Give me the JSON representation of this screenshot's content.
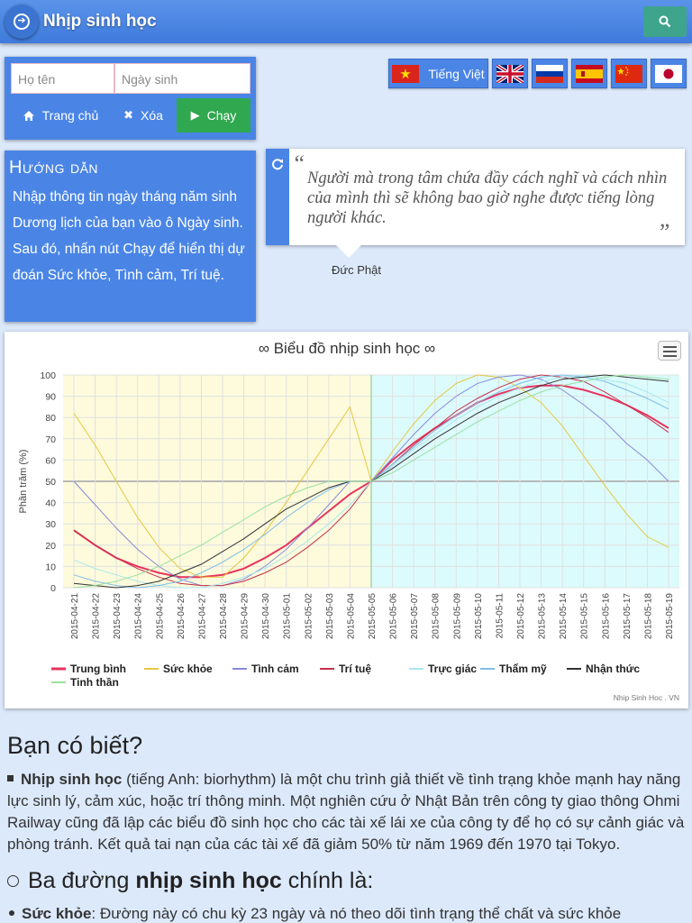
{
  "app": {
    "title": "Nhịp sinh học"
  },
  "form": {
    "name_placeholder": "Họ tên",
    "birth_placeholder": "Ngày sinh",
    "home_label": "Trang chủ",
    "clear_label": "Xóa",
    "run_label": "Chạy"
  },
  "languages": {
    "selected_label": "Tiếng Việt"
  },
  "guide": {
    "title": "Hướng dẫn",
    "text": "Nhập thông tin ngày tháng năm sinh Dương lịch của bạn vào ô Ngày sinh. Sau đó, nhấn nút Chạy để hiển thị dự đoán Sức khỏe, Tình cảm, Trí tuệ."
  },
  "quote": {
    "text": "Người mà trong tâm chứa đầy cách nghĩ và cách nhìn của mình thì sẽ không bao giờ nghe được tiếng lòng người khác.",
    "author": "Đức Phật"
  },
  "chart_data": {
    "type": "line",
    "title": "∞ Biểu đồ nhịp sinh học ∞",
    "ylabel": "Phần trăm (%)",
    "ylim": [
      0,
      100
    ],
    "yticks": [
      0,
      10,
      20,
      30,
      40,
      50,
      60,
      70,
      80,
      90,
      100
    ],
    "credit": "Nhip Sinh Hoc . VN",
    "x": [
      "2015-04-21",
      "2015-04-22",
      "2015-04-23",
      "2015-04-24",
      "2015-04-25",
      "2015-04-26",
      "2015-04-27",
      "2015-04-28",
      "2015-04-29",
      "2015-04-30",
      "2015-05-01",
      "2015-05-02",
      "2015-05-03",
      "2015-05-04",
      "2015-05-05",
      "2015-05-06",
      "2015-05-07",
      "2015-05-08",
      "2015-05-09",
      "2015-05-10",
      "2015-05-11",
      "2015-05-12",
      "2015-05-13",
      "2015-05-14",
      "2015-05-15",
      "2015-05-16",
      "2015-05-17",
      "2015-05-18",
      "2015-05-19"
    ],
    "series": [
      {
        "name": "Trung bình",
        "color": "#e8335e",
        "values": [
          27,
          20,
          14,
          10,
          7,
          5,
          5,
          6,
          9,
          14,
          20,
          28,
          36,
          44,
          50,
          60,
          68,
          75,
          81,
          87,
          91,
          94,
          95,
          95,
          93,
          90,
          86,
          81,
          75
        ]
      },
      {
        "name": "Sức khỏe",
        "color": "#e6c840",
        "values": [
          82,
          67,
          50,
          33,
          19,
          9,
          5,
          5,
          14,
          26,
          40,
          55,
          70,
          85,
          50,
          64,
          77,
          88,
          96,
          100,
          99,
          94,
          87,
          76,
          62,
          48,
          35,
          24,
          19
        ]
      },
      {
        "name": "Tình cảm",
        "color": "#8a8ad9",
        "values": [
          50,
          39,
          28,
          18,
          10,
          4,
          1,
          1,
          4,
          10,
          18,
          28,
          39,
          50,
          50,
          61,
          72,
          82,
          90,
          96,
          99,
          100,
          98,
          93,
          86,
          78,
          68,
          60,
          50
        ]
      },
      {
        "name": "Trí tuệ",
        "color": "#c4304c",
        "values": [
          27,
          20,
          14,
          9,
          5,
          2,
          1,
          1,
          3,
          7,
          12,
          19,
          27,
          37,
          50,
          58,
          67,
          75,
          83,
          89,
          94,
          98,
          100,
          99,
          97,
          92,
          86,
          80,
          73
        ]
      },
      {
        "name": "Trực giác",
        "color": "#a9e7ef",
        "values": [
          13,
          9,
          6,
          3,
          1,
          0,
          0,
          2,
          5,
          9,
          15,
          22,
          30,
          39,
          50,
          57,
          65,
          72,
          79,
          85,
          90,
          94,
          97,
          99,
          100,
          98,
          96,
          92,
          87
        ]
      },
      {
        "name": "Thẩm mỹ",
        "color": "#7fbde8",
        "values": [
          6,
          3,
          1,
          0,
          1,
          3,
          7,
          12,
          18,
          25,
          33,
          40,
          46,
          50,
          50,
          58,
          66,
          74,
          81,
          87,
          92,
          96,
          99,
          100,
          99,
          97,
          93,
          89,
          84
        ]
      },
      {
        "name": "Nhận thức",
        "color": "#333333",
        "values": [
          2,
          1,
          0,
          1,
          3,
          7,
          11,
          17,
          23,
          30,
          37,
          42,
          47,
          50,
          50,
          56,
          63,
          70,
          76,
          82,
          87,
          91,
          95,
          98,
          99,
          100,
          99,
          98,
          97
        ]
      },
      {
        "name": "Tinh thần",
        "color": "#99e0a0",
        "values": [
          0,
          1,
          3,
          6,
          10,
          15,
          20,
          26,
          32,
          38,
          43,
          47,
          50,
          50,
          50,
          54,
          60,
          66,
          72,
          78,
          83,
          88,
          92,
          95,
          97,
          99,
          100,
          99,
          98
        ]
      }
    ]
  },
  "article": {
    "heading": "Bạn có biết?",
    "term": "Nhịp sinh học",
    "paragraph": " (tiếng Anh: biorhythm) là một chu trình giả thiết về tình trạng khỏe mạnh hay năng lực sinh lý, cảm xúc, hoặc trí thông minh. Một nghiên cứu ở Nhật Bản trên công ty giao thông Ohmi Railway cũng đã lập các biểu đồ sinh học cho các tài xế lái xe của công ty để họ có sự cảnh giác và phòng tránh. Kết quả tai nạn của các tài xế đã giảm 50% từ năm 1969 đến 1970 tại Tokyo.",
    "subheading_pre": "Ba đường ",
    "subheading_bold": "nhịp sinh học",
    "subheading_post": " chính là:",
    "item1_term": "Sức khỏe",
    "item1_text": ": Đường này có chu kỳ 23 ngày và nó theo dõi tình trạng thể chất và sức khỏe"
  }
}
